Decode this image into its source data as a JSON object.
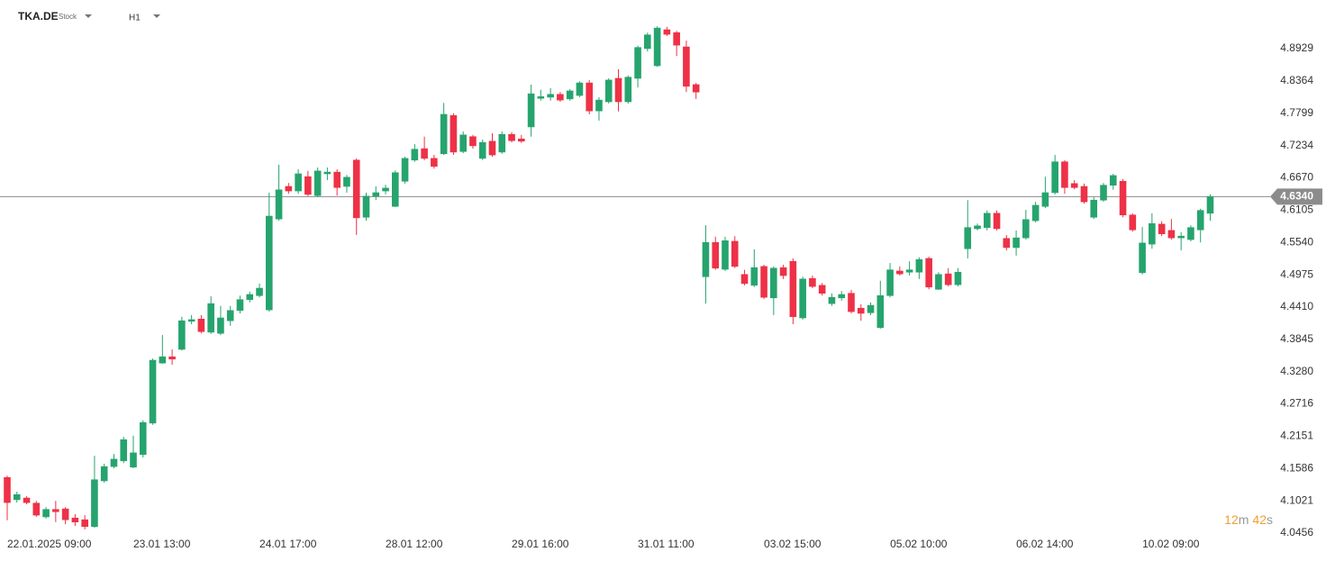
{
  "header": {
    "symbol": "TKA.DE",
    "kind": "Stock",
    "interval": "H1"
  },
  "countdown": [
    "12",
    "m",
    "42",
    "s"
  ],
  "chart_data": {
    "type": "candlestick",
    "up_color": "#26a46e",
    "down_color": "#ee3146",
    "categories": [
      "22.01.2025 09:00",
      null,
      null,
      null,
      null,
      null,
      null,
      null,
      null,
      null,
      null,
      null,
      null,
      "23.01 13:00",
      null,
      null,
      null,
      null,
      null,
      null,
      null,
      null,
      null,
      null,
      null,
      null,
      "24.01 17:00",
      null,
      null,
      null,
      null,
      null,
      null,
      null,
      null,
      null,
      null,
      null,
      null,
      "28.01 12:00",
      null,
      null,
      null,
      null,
      null,
      null,
      null,
      null,
      null,
      null,
      null,
      null,
      "29.01 16:00",
      null,
      null,
      null,
      null,
      null,
      null,
      null,
      null,
      null,
      null,
      null,
      null,
      "31.01 11:00",
      null,
      null,
      null,
      null,
      null,
      null,
      null,
      null,
      null,
      null,
      null,
      null,
      "03.02 15:00",
      null,
      null,
      null,
      null,
      null,
      null,
      null,
      null,
      null,
      null,
      null,
      null,
      "05.02 10:00",
      null,
      null,
      null,
      null,
      null,
      null,
      null,
      null,
      null,
      null,
      null,
      null,
      "06.02 14:00",
      null,
      null,
      null,
      null,
      null,
      null,
      null,
      null,
      null,
      null,
      null,
      null,
      "10.02 09:00",
      null,
      null,
      null,
      null,
      null,
      null,
      null
    ],
    "open": [
      4.143,
      4.104,
      4.107,
      4.098,
      4.074,
      4.087,
      4.088,
      4.072,
      4.069,
      4.057,
      4.137,
      4.162,
      4.172,
      4.161,
      4.183,
      4.238,
      4.343,
      4.354,
      4.367,
      4.416,
      4.42,
      4.397,
      4.395,
      4.417,
      4.435,
      4.454,
      4.461,
      4.436,
      4.595,
      4.652,
      4.644,
      4.669,
      4.636,
      4.674,
      4.677,
      4.652,
      4.698,
      4.598,
      4.635,
      4.644,
      4.617,
      4.661,
      4.698,
      4.718,
      4.701,
      4.709,
      4.776,
      4.713,
      4.739,
      4.701,
      4.731,
      4.712,
      4.743,
      4.735,
      4.756,
      4.806,
      4.808,
      4.813,
      4.805,
      4.811,
      4.833,
      4.784,
      4.8,
      4.841,
      4.8,
      4.841,
      4.893,
      4.863,
      4.926,
      4.921,
      4.896,
      4.83,
      4.494,
      4.554,
      4.507,
      4.556,
      4.498,
      4.479,
      4.512,
      4.457,
      4.51,
      4.521,
      4.422,
      4.491,
      4.479,
      4.447,
      4.457,
      4.465,
      4.439,
      4.431,
      4.405,
      4.461,
      4.504,
      4.502,
      4.502,
      4.526,
      4.472,
      4.499,
      4.48,
      4.543,
      4.578,
      4.58,
      4.605,
      4.561,
      4.545,
      4.562,
      4.592,
      4.617,
      4.641,
      4.695,
      4.657,
      4.652,
      4.598,
      4.628,
      4.654,
      4.661,
      4.602,
      4.501,
      4.551,
      4.586,
      4.575,
      4.562,
      4.559,
      4.576,
      4.605
    ],
    "high": [
      4.146,
      4.118,
      4.11,
      4.102,
      4.091,
      4.102,
      4.091,
      4.079,
      4.077,
      4.181,
      4.167,
      4.184,
      4.214,
      4.216,
      4.243,
      4.351,
      4.392,
      4.367,
      4.424,
      4.427,
      4.427,
      4.46,
      4.443,
      4.443,
      4.461,
      4.468,
      4.482,
      4.641,
      4.69,
      4.658,
      4.682,
      4.679,
      4.685,
      4.685,
      4.682,
      4.672,
      4.701,
      4.641,
      4.652,
      4.655,
      4.68,
      4.704,
      4.726,
      4.739,
      4.707,
      4.798,
      4.78,
      4.748,
      4.742,
      4.734,
      4.745,
      4.748,
      4.747,
      4.742,
      4.83,
      4.821,
      4.824,
      4.817,
      4.822,
      4.836,
      4.838,
      4.808,
      4.841,
      4.857,
      4.846,
      4.898,
      4.921,
      4.932,
      4.931,
      4.924,
      4.907,
      4.833,
      4.584,
      4.564,
      4.564,
      4.565,
      4.506,
      4.542,
      4.515,
      4.512,
      4.515,
      4.526,
      4.494,
      4.496,
      4.483,
      4.465,
      4.469,
      4.471,
      4.446,
      4.449,
      4.487,
      4.518,
      4.512,
      4.521,
      4.528,
      4.529,
      4.502,
      4.509,
      4.509,
      4.628,
      4.587,
      4.61,
      4.61,
      4.567,
      4.575,
      4.611,
      4.625,
      4.669,
      4.707,
      4.698,
      4.663,
      4.657,
      4.633,
      4.658,
      4.674,
      4.665,
      4.605,
      4.581,
      4.605,
      4.591,
      4.595,
      4.572,
      4.584,
      4.613,
      4.638
    ],
    "low": [
      4.068,
      4.099,
      4.096,
      4.074,
      4.071,
      4.065,
      4.061,
      4.058,
      4.052,
      4.055,
      4.134,
      4.159,
      4.168,
      4.159,
      4.178,
      4.235,
      4.342,
      4.34,
      4.365,
      4.411,
      4.395,
      4.394,
      4.392,
      4.408,
      4.43,
      4.449,
      4.458,
      4.433,
      4.592,
      4.639,
      4.639,
      4.635,
      4.633,
      4.663,
      4.636,
      4.641,
      4.567,
      4.592,
      4.628,
      4.638,
      4.616,
      4.657,
      4.695,
      4.698,
      4.683,
      4.707,
      4.707,
      4.71,
      4.718,
      4.698,
      4.704,
      4.709,
      4.729,
      4.728,
      4.739,
      4.802,
      4.802,
      4.8,
      4.802,
      4.808,
      4.778,
      4.767,
      4.797,
      4.783,
      4.797,
      4.825,
      4.888,
      4.861,
      4.915,
      4.88,
      4.817,
      4.805,
      4.447,
      4.506,
      4.504,
      4.509,
      4.479,
      4.476,
      4.455,
      4.427,
      4.49,
      4.411,
      4.419,
      4.474,
      4.461,
      4.443,
      4.452,
      4.43,
      4.417,
      4.427,
      4.403,
      4.458,
      4.496,
      4.496,
      4.49,
      4.472,
      4.471,
      4.477,
      4.477,
      4.526,
      4.575,
      4.575,
      4.575,
      4.54,
      4.531,
      4.559,
      4.589,
      4.614,
      4.638,
      4.639,
      4.647,
      4.622,
      4.595,
      4.625,
      4.646,
      4.598,
      4.573,
      4.498,
      4.543,
      4.565,
      4.559,
      4.54,
      4.556,
      4.554,
      4.592
    ],
    "close": [
      4.099,
      4.113,
      4.099,
      4.077,
      4.087,
      4.083,
      4.069,
      4.065,
      4.057,
      4.139,
      4.162,
      4.175,
      4.209,
      4.186,
      4.239,
      4.348,
      4.354,
      4.35,
      4.417,
      4.419,
      4.398,
      4.447,
      4.422,
      4.435,
      4.454,
      4.463,
      4.474,
      4.6,
      4.646,
      4.644,
      4.674,
      4.638,
      4.679,
      4.677,
      4.65,
      4.668,
      4.597,
      4.635,
      4.641,
      4.649,
      4.676,
      4.701,
      4.717,
      4.701,
      4.687,
      4.778,
      4.712,
      4.742,
      4.723,
      4.729,
      4.707,
      4.743,
      4.732,
      4.731,
      4.814,
      4.809,
      4.813,
      4.803,
      4.819,
      4.833,
      4.784,
      4.803,
      4.838,
      4.8,
      4.843,
      4.895,
      4.917,
      4.929,
      4.918,
      4.899,
      4.827,
      4.817,
      4.554,
      4.509,
      4.557,
      4.512,
      4.482,
      4.51,
      4.458,
      4.509,
      4.496,
      4.424,
      4.49,
      4.477,
      4.465,
      4.458,
      4.463,
      4.433,
      4.43,
      4.444,
      4.461,
      4.506,
      4.499,
      4.506,
      4.524,
      4.476,
      4.498,
      4.48,
      4.502,
      4.58,
      4.583,
      4.605,
      4.578,
      4.545,
      4.562,
      4.594,
      4.619,
      4.641,
      4.695,
      4.65,
      4.65,
      4.625,
      4.628,
      4.654,
      4.671,
      4.602,
      4.576,
      4.553,
      4.587,
      4.569,
      4.562,
      4.565,
      4.58,
      4.61,
      4.634
    ],
    "ylim": [
      4.0362,
      4.978
    ],
    "yticks": [
      4.0456,
      4.1021,
      4.1586,
      4.2151,
      4.2716,
      {
        "value": 4.328,
        "label": "4.3280"
      },
      4.3845,
      {
        "value": 4.441,
        "label": "4.4410"
      },
      4.4975,
      {
        "value": 4.554,
        "label": "4.5540"
      },
      4.6105,
      {
        "value": 4.667,
        "label": "4.6670"
      },
      4.7234,
      4.7799,
      4.8364,
      4.8929
    ],
    "last_price": {
      "value": 4.634,
      "label": "4.6340"
    }
  }
}
